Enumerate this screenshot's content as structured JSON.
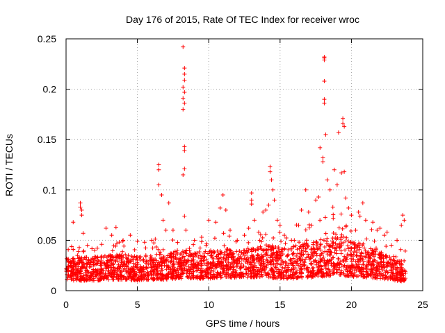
{
  "chart_data": {
    "type": "scatter",
    "title": "Day 176 of 2015, Rate Of TEC Index for receiver wroc",
    "xlabel": "GPS time / hours",
    "ylabel": "ROTI / TECUs",
    "xlim": [
      0,
      25
    ],
    "ylim": [
      0,
      0.25
    ],
    "xticks": [
      0,
      5,
      10,
      15,
      20,
      25
    ],
    "yticks": [
      0,
      0.05,
      0.1,
      0.15,
      0.2,
      0.25
    ],
    "xtick_labels": [
      "0",
      "5",
      "10",
      "15",
      "20",
      "25"
    ],
    "ytick_labels": [
      "0",
      "0.05",
      "0.1",
      "0.15",
      "0.2",
      "0.25"
    ],
    "grid": true,
    "marker": "+",
    "color": "#ff0000",
    "series": [
      {
        "name": "ROTI",
        "points": [
          [
            0.3,
            0.028
          ],
          [
            0.5,
            0.068
          ],
          [
            0.5,
            0.041
          ],
          [
            0.8,
            0.035
          ],
          [
            1.0,
            0.087
          ],
          [
            1.0,
            0.083
          ],
          [
            1.1,
            0.08
          ],
          [
            1.1,
            0.075
          ],
          [
            1.2,
            0.057
          ],
          [
            1.5,
            0.045
          ],
          [
            2.0,
            0.04
          ],
          [
            2.5,
            0.046
          ],
          [
            2.8,
            0.062
          ],
          [
            3.2,
            0.055
          ],
          [
            3.5,
            0.063
          ],
          [
            4.0,
            0.05
          ],
          [
            4.5,
            0.055
          ],
          [
            5.0,
            0.049
          ],
          [
            5.5,
            0.048
          ],
          [
            6.0,
            0.05
          ],
          [
            6.5,
            0.125
          ],
          [
            6.5,
            0.12
          ],
          [
            6.5,
            0.105
          ],
          [
            6.7,
            0.095
          ],
          [
            6.8,
            0.07
          ],
          [
            7.0,
            0.06
          ],
          [
            7.2,
            0.087
          ],
          [
            7.5,
            0.06
          ],
          [
            7.8,
            0.04
          ],
          [
            8.2,
            0.242
          ],
          [
            8.3,
            0.221
          ],
          [
            8.3,
            0.215
          ],
          [
            8.3,
            0.209
          ],
          [
            8.2,
            0.202
          ],
          [
            8.3,
            0.197
          ],
          [
            8.2,
            0.191
          ],
          [
            8.3,
            0.186
          ],
          [
            8.2,
            0.18
          ],
          [
            8.3,
            0.143
          ],
          [
            8.3,
            0.139
          ],
          [
            8.3,
            0.121
          ],
          [
            8.2,
            0.115
          ],
          [
            8.3,
            0.074
          ],
          [
            8.4,
            0.06
          ],
          [
            9.0,
            0.05
          ],
          [
            9.5,
            0.053
          ],
          [
            10.0,
            0.07
          ],
          [
            10.5,
            0.068
          ],
          [
            10.8,
            0.082
          ],
          [
            11.0,
            0.095
          ],
          [
            11.2,
            0.08
          ],
          [
            11.5,
            0.06
          ],
          [
            12.0,
            0.05
          ],
          [
            12.5,
            0.055
          ],
          [
            12.8,
            0.062
          ],
          [
            13.0,
            0.097
          ],
          [
            13.0,
            0.09
          ],
          [
            13.0,
            0.086
          ],
          [
            13.2,
            0.07
          ],
          [
            13.5,
            0.058
          ],
          [
            13.8,
            0.078
          ],
          [
            14.0,
            0.08
          ],
          [
            14.2,
            0.085
          ],
          [
            14.3,
            0.123
          ],
          [
            14.3,
            0.118
          ],
          [
            14.4,
            0.11
          ],
          [
            14.5,
            0.1
          ],
          [
            14.6,
            0.09
          ],
          [
            14.8,
            0.07
          ],
          [
            15.0,
            0.065
          ],
          [
            15.3,
            0.055
          ],
          [
            15.8,
            0.05
          ],
          [
            16.0,
            0.05
          ],
          [
            16.3,
            0.065
          ],
          [
            16.5,
            0.08
          ],
          [
            16.8,
            0.1
          ],
          [
            17.0,
            0.078
          ],
          [
            17.2,
            0.065
          ],
          [
            17.5,
            0.09
          ],
          [
            17.7,
            0.093
          ],
          [
            17.8,
            0.142
          ],
          [
            18.0,
            0.132
          ],
          [
            18.0,
            0.128
          ],
          [
            18.1,
            0.231
          ],
          [
            18.1,
            0.229
          ],
          [
            18.1,
            0.232
          ],
          [
            18.1,
            0.208
          ],
          [
            18.1,
            0.19
          ],
          [
            18.1,
            0.186
          ],
          [
            18.2,
            0.155
          ],
          [
            18.3,
            0.11
          ],
          [
            18.5,
            0.1
          ],
          [
            18.7,
            0.083
          ],
          [
            18.8,
            0.12
          ],
          [
            19.0,
            0.105
          ],
          [
            19.1,
            0.157
          ],
          [
            19.3,
            0.117
          ],
          [
            19.4,
            0.171
          ],
          [
            19.4,
            0.166
          ],
          [
            19.5,
            0.163
          ],
          [
            19.5,
            0.118
          ],
          [
            19.6,
            0.092
          ],
          [
            19.8,
            0.082
          ],
          [
            20.0,
            0.075
          ],
          [
            20.3,
            0.06
          ],
          [
            20.5,
            0.078
          ],
          [
            20.6,
            0.074
          ],
          [
            20.8,
            0.087
          ],
          [
            21.0,
            0.07
          ],
          [
            21.5,
            0.068
          ],
          [
            21.8,
            0.06
          ],
          [
            22.0,
            0.062
          ],
          [
            22.3,
            0.055
          ],
          [
            22.5,
            0.058
          ],
          [
            22.8,
            0.045
          ],
          [
            23.0,
            0.03
          ],
          [
            23.2,
            0.05
          ],
          [
            23.5,
            0.065
          ],
          [
            23.6,
            0.075
          ],
          [
            23.7,
            0.07
          ]
        ]
      }
    ],
    "dense_band": {
      "description_free": true,
      "x_range": [
        0,
        23.8
      ],
      "baseline_envelope": [
        [
          0,
          0.01,
          0.032
        ],
        [
          1,
          0.01,
          0.033
        ],
        [
          2,
          0.01,
          0.034
        ],
        [
          3,
          0.011,
          0.035
        ],
        [
          4,
          0.011,
          0.036
        ],
        [
          5,
          0.01,
          0.034
        ],
        [
          6,
          0.011,
          0.036
        ],
        [
          7,
          0.011,
          0.037
        ],
        [
          8,
          0.012,
          0.04
        ],
        [
          9,
          0.012,
          0.038
        ],
        [
          10,
          0.012,
          0.04
        ],
        [
          11,
          0.013,
          0.042
        ],
        [
          12,
          0.013,
          0.04
        ],
        [
          13,
          0.013,
          0.043
        ],
        [
          14,
          0.013,
          0.046
        ],
        [
          15,
          0.012,
          0.044
        ],
        [
          16,
          0.012,
          0.045
        ],
        [
          17,
          0.013,
          0.048
        ],
        [
          18,
          0.014,
          0.052
        ],
        [
          19,
          0.015,
          0.058
        ],
        [
          20,
          0.014,
          0.05
        ],
        [
          21,
          0.013,
          0.045
        ],
        [
          22,
          0.012,
          0.04
        ],
        [
          23,
          0.01,
          0.03
        ],
        [
          23.8,
          0.009,
          0.03
        ]
      ],
      "count": 2400
    }
  }
}
